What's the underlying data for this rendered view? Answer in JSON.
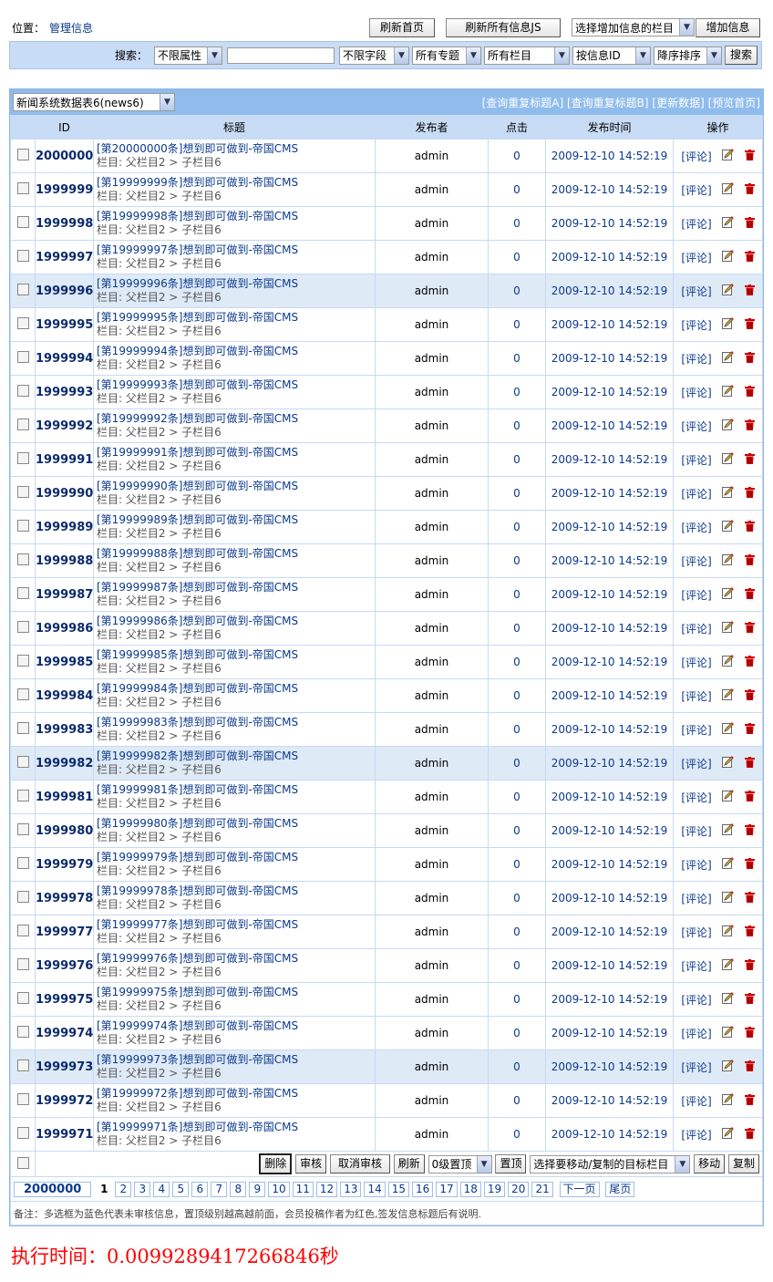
{
  "location": {
    "label": "位置：",
    "link": "管理信息"
  },
  "top_buttons": {
    "refresh_home": "刷新首页",
    "refresh_js": "刷新所有信息JS",
    "column_select": "选择增加信息的栏目",
    "add": "增加信息"
  },
  "search": {
    "label": "搜索：",
    "attr": "不限属性",
    "keyword": "",
    "field": "不限字段",
    "topic": "所有专题",
    "column": "所有栏目",
    "order_by": "按信息ID",
    "order": "降序排序",
    "button": "搜索"
  },
  "table_select": "新闻系统数据表6(news6)",
  "header_links": [
    "[查询重复标题A]",
    "[查询重复标题B]",
    "[更新数据]",
    "[预览首页]"
  ],
  "columns": [
    "ID",
    "标题",
    "发布者",
    "点击",
    "发布时间",
    "操作"
  ],
  "comment_label": "[评论]",
  "rows": [
    {
      "id": "2000000",
      "title": "[第20000000条]想到即可做到-帝国CMS",
      "category": "栏目: 父栏目2 > 子栏目6",
      "publisher": "admin",
      "clicks": "0",
      "time": "2009-12-10 14:52:19",
      "highlighted": false
    },
    {
      "id": "1999999",
      "title": "[第19999999条]想到即可做到-帝国CMS",
      "category": "栏目: 父栏目2 > 子栏目6",
      "publisher": "admin",
      "clicks": "0",
      "time": "2009-12-10 14:52:19",
      "highlighted": false
    },
    {
      "id": "1999998",
      "title": "[第19999998条]想到即可做到-帝国CMS",
      "category": "栏目: 父栏目2 > 子栏目6",
      "publisher": "admin",
      "clicks": "0",
      "time": "2009-12-10 14:52:19",
      "highlighted": false
    },
    {
      "id": "1999997",
      "title": "[第19999997条]想到即可做到-帝国CMS",
      "category": "栏目: 父栏目2 > 子栏目6",
      "publisher": "admin",
      "clicks": "0",
      "time": "2009-12-10 14:52:19",
      "highlighted": false
    },
    {
      "id": "1999996",
      "title": "[第19999996条]想到即可做到-帝国CMS",
      "category": "栏目: 父栏目2 > 子栏目6",
      "publisher": "admin",
      "clicks": "0",
      "time": "2009-12-10 14:52:19",
      "highlighted": true
    },
    {
      "id": "1999995",
      "title": "[第19999995条]想到即可做到-帝国CMS",
      "category": "栏目: 父栏目2 > 子栏目6",
      "publisher": "admin",
      "clicks": "0",
      "time": "2009-12-10 14:52:19",
      "highlighted": false
    },
    {
      "id": "1999994",
      "title": "[第19999994条]想到即可做到-帝国CMS",
      "category": "栏目: 父栏目2 > 子栏目6",
      "publisher": "admin",
      "clicks": "0",
      "time": "2009-12-10 14:52:19",
      "highlighted": false
    },
    {
      "id": "1999993",
      "title": "[第19999993条]想到即可做到-帝国CMS",
      "category": "栏目: 父栏目2 > 子栏目6",
      "publisher": "admin",
      "clicks": "0",
      "time": "2009-12-10 14:52:19",
      "highlighted": false
    },
    {
      "id": "1999992",
      "title": "[第19999992条]想到即可做到-帝国CMS",
      "category": "栏目: 父栏目2 > 子栏目6",
      "publisher": "admin",
      "clicks": "0",
      "time": "2009-12-10 14:52:19",
      "highlighted": false
    },
    {
      "id": "1999991",
      "title": "[第19999991条]想到即可做到-帝国CMS",
      "category": "栏目: 父栏目2 > 子栏目6",
      "publisher": "admin",
      "clicks": "0",
      "time": "2009-12-10 14:52:19",
      "highlighted": false
    },
    {
      "id": "1999990",
      "title": "[第19999990条]想到即可做到-帝国CMS",
      "category": "栏目: 父栏目2 > 子栏目6",
      "publisher": "admin",
      "clicks": "0",
      "time": "2009-12-10 14:52:19",
      "highlighted": false
    },
    {
      "id": "1999989",
      "title": "[第19999989条]想到即可做到-帝国CMS",
      "category": "栏目: 父栏目2 > 子栏目6",
      "publisher": "admin",
      "clicks": "0",
      "time": "2009-12-10 14:52:19",
      "highlighted": false
    },
    {
      "id": "1999988",
      "title": "[第19999988条]想到即可做到-帝国CMS",
      "category": "栏目: 父栏目2 > 子栏目6",
      "publisher": "admin",
      "clicks": "0",
      "time": "2009-12-10 14:52:19",
      "highlighted": false
    },
    {
      "id": "1999987",
      "title": "[第19999987条]想到即可做到-帝国CMS",
      "category": "栏目: 父栏目2 > 子栏目6",
      "publisher": "admin",
      "clicks": "0",
      "time": "2009-12-10 14:52:19",
      "highlighted": false
    },
    {
      "id": "1999986",
      "title": "[第19999986条]想到即可做到-帝国CMS",
      "category": "栏目: 父栏目2 > 子栏目6",
      "publisher": "admin",
      "clicks": "0",
      "time": "2009-12-10 14:52:19",
      "highlighted": false
    },
    {
      "id": "1999985",
      "title": "[第19999985条]想到即可做到-帝国CMS",
      "category": "栏目: 父栏目2 > 子栏目6",
      "publisher": "admin",
      "clicks": "0",
      "time": "2009-12-10 14:52:19",
      "highlighted": false
    },
    {
      "id": "1999984",
      "title": "[第19999984条]想到即可做到-帝国CMS",
      "category": "栏目: 父栏目2 > 子栏目6",
      "publisher": "admin",
      "clicks": "0",
      "time": "2009-12-10 14:52:19",
      "highlighted": false
    },
    {
      "id": "1999983",
      "title": "[第19999983条]想到即可做到-帝国CMS",
      "category": "栏目: 父栏目2 > 子栏目6",
      "publisher": "admin",
      "clicks": "0",
      "time": "2009-12-10 14:52:19",
      "highlighted": false
    },
    {
      "id": "1999982",
      "title": "[第19999982条]想到即可做到-帝国CMS",
      "category": "栏目: 父栏目2 > 子栏目6",
      "publisher": "admin",
      "clicks": "0",
      "time": "2009-12-10 14:52:19",
      "highlighted": true
    },
    {
      "id": "1999981",
      "title": "[第19999981条]想到即可做到-帝国CMS",
      "category": "栏目: 父栏目2 > 子栏目6",
      "publisher": "admin",
      "clicks": "0",
      "time": "2009-12-10 14:52:19",
      "highlighted": false
    },
    {
      "id": "1999980",
      "title": "[第19999980条]想到即可做到-帝国CMS",
      "category": "栏目: 父栏目2 > 子栏目6",
      "publisher": "admin",
      "clicks": "0",
      "time": "2009-12-10 14:52:19",
      "highlighted": false
    },
    {
      "id": "1999979",
      "title": "[第19999979条]想到即可做到-帝国CMS",
      "category": "栏目: 父栏目2 > 子栏目6",
      "publisher": "admin",
      "clicks": "0",
      "time": "2009-12-10 14:52:19",
      "highlighted": false
    },
    {
      "id": "1999978",
      "title": "[第19999978条]想到即可做到-帝国CMS",
      "category": "栏目: 父栏目2 > 子栏目6",
      "publisher": "admin",
      "clicks": "0",
      "time": "2009-12-10 14:52:19",
      "highlighted": false
    },
    {
      "id": "1999977",
      "title": "[第19999977条]想到即可做到-帝国CMS",
      "category": "栏目: 父栏目2 > 子栏目6",
      "publisher": "admin",
      "clicks": "0",
      "time": "2009-12-10 14:52:19",
      "highlighted": false
    },
    {
      "id": "1999976",
      "title": "[第19999976条]想到即可做到-帝国CMS",
      "category": "栏目: 父栏目2 > 子栏目6",
      "publisher": "admin",
      "clicks": "0",
      "time": "2009-12-10 14:52:19",
      "highlighted": false
    },
    {
      "id": "1999975",
      "title": "[第19999975条]想到即可做到-帝国CMS",
      "category": "栏目: 父栏目2 > 子栏目6",
      "publisher": "admin",
      "clicks": "0",
      "time": "2009-12-10 14:52:19",
      "highlighted": false
    },
    {
      "id": "1999974",
      "title": "[第19999974条]想到即可做到-帝国CMS",
      "category": "栏目: 父栏目2 > 子栏目6",
      "publisher": "admin",
      "clicks": "0",
      "time": "2009-12-10 14:52:19",
      "highlighted": false
    },
    {
      "id": "1999973",
      "title": "[第19999973条]想到即可做到-帝国CMS",
      "category": "栏目: 父栏目2 > 子栏目6",
      "publisher": "admin",
      "clicks": "0",
      "time": "2009-12-10 14:52:19",
      "highlighted": true
    },
    {
      "id": "1999972",
      "title": "[第19999972条]想到即可做到-帝国CMS",
      "category": "栏目: 父栏目2 > 子栏目6",
      "publisher": "admin",
      "clicks": "0",
      "time": "2009-12-10 14:52:19",
      "highlighted": false
    },
    {
      "id": "1999971",
      "title": "[第19999971条]想到即可做到-帝国CMS",
      "category": "栏目: 父栏目2 > 子栏目6",
      "publisher": "admin",
      "clicks": "0",
      "time": "2009-12-10 14:52:19",
      "highlighted": false
    }
  ],
  "actions": {
    "delete": "删除",
    "approve": "审核",
    "unapprove": "取消审核",
    "refresh": "刷新",
    "top_level": "0级置顶",
    "set_top": "置顶",
    "target_column": "选择要移动/复制的目标栏目",
    "move": "移动",
    "copy": "复制"
  },
  "pagination": {
    "total": "2000000",
    "current": "1",
    "pages": [
      "2",
      "3",
      "4",
      "5",
      "6",
      "7",
      "8",
      "9",
      "10",
      "11",
      "12",
      "13",
      "14",
      "15",
      "16",
      "17",
      "18",
      "19",
      "20",
      "21"
    ],
    "next": "下一页",
    "last": "尾页"
  },
  "note": "备注：多选框为蓝色代表未审核信息，置顶级别越高越前面，会员投稿作者为红色,签发信息标题后有说明.",
  "exec_time": "执行时间：0.0099289417266846秒",
  "colors": {
    "header_bar": "#8fbcec",
    "column_header": "#c9dcf6",
    "highlight_row": "#dfeaf7",
    "link": "#0b3a8c",
    "exec_time": "#ff0000"
  }
}
